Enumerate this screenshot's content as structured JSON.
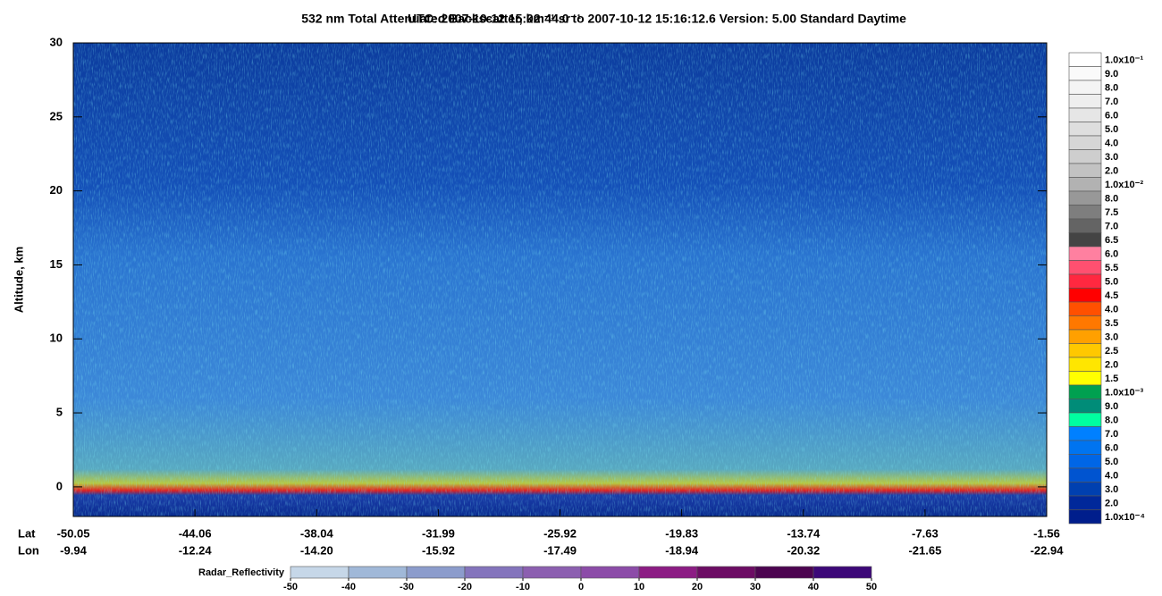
{
  "chart_data": {
    "type": "heatmap",
    "title": "532 nm Total Attenuated Backscatter, km⁻¹ sr⁻¹",
    "subtitle": "UTC:  2007-10-12 15:02:44.0  to  2007-10-12 15:16:12.6    Version: 5.00  Standard  Daytime",
    "ylabel": "Altitude, km",
    "ylim": [
      -2,
      30
    ],
    "yticks": [
      0,
      5,
      10,
      15,
      20,
      25,
      30
    ],
    "lat_label": "Lat",
    "lat": [
      -50.05,
      -44.06,
      -38.04,
      -31.99,
      -25.92,
      -19.83,
      -13.74,
      -7.63,
      -1.56
    ],
    "lon_label": "Lon",
    "lon": [
      -9.94,
      -12.24,
      {
        "value": -14.2,
        "label": "-14.20"
      },
      -15.92,
      -17.49,
      -18.94,
      -20.32,
      -21.65,
      -22.94
    ],
    "colorbar": {
      "labels": [
        "1.0x10⁻¹",
        "9.0",
        "8.0",
        "7.0",
        "6.0",
        "5.0",
        "4.0",
        "3.0",
        "2.0",
        "1.0x10⁻²",
        "8.0",
        "7.5",
        "7.0",
        "6.5",
        "6.0",
        "5.5",
        "5.0",
        "4.5",
        "4.0",
        "3.5",
        "3.0",
        "2.5",
        "2.0",
        "1.5",
        "1.0x10⁻³",
        "9.0",
        "8.0",
        "7.0",
        "6.0",
        "5.0",
        "4.0",
        "3.0",
        "2.0",
        "1.0x10⁻⁴"
      ],
      "colors": [
        "#ffffff",
        "#fafafa",
        "#f4f4f4",
        "#eeeeee",
        "#e6e6e6",
        "#dedede",
        "#d6d6d6",
        "#cecece",
        "#c2c2c2",
        "#b2b2b2",
        "#989898",
        "#7e7e7e",
        "#646464",
        "#444444",
        "#ff80a0",
        "#ff5070",
        "#ff2840",
        "#ff0000",
        "#ff5000",
        "#ff7800",
        "#ffa000",
        "#ffc800",
        "#ffe600",
        "#ffff00",
        "#00a050",
        "#008c78",
        "#00ffa0",
        "#0080ff",
        "#0074f0",
        "#0066e6",
        "#0054d0",
        "#0040b0",
        "#00289a",
        "#001e8c"
      ]
    },
    "radar": {
      "label": "Radar_Reflectivity",
      "ticks": [
        -50,
        -40,
        -30,
        -20,
        -10,
        0,
        10,
        20,
        30,
        40,
        50
      ],
      "colors": [
        "#c6d7e8",
        "#a0b8d8",
        "#8c9ccc",
        "#8474bc",
        "#8c5fb0",
        "#8c4ca8",
        "#8c1c84",
        "#6c0c64",
        "#4c0450",
        "#3c0878"
      ]
    }
  }
}
